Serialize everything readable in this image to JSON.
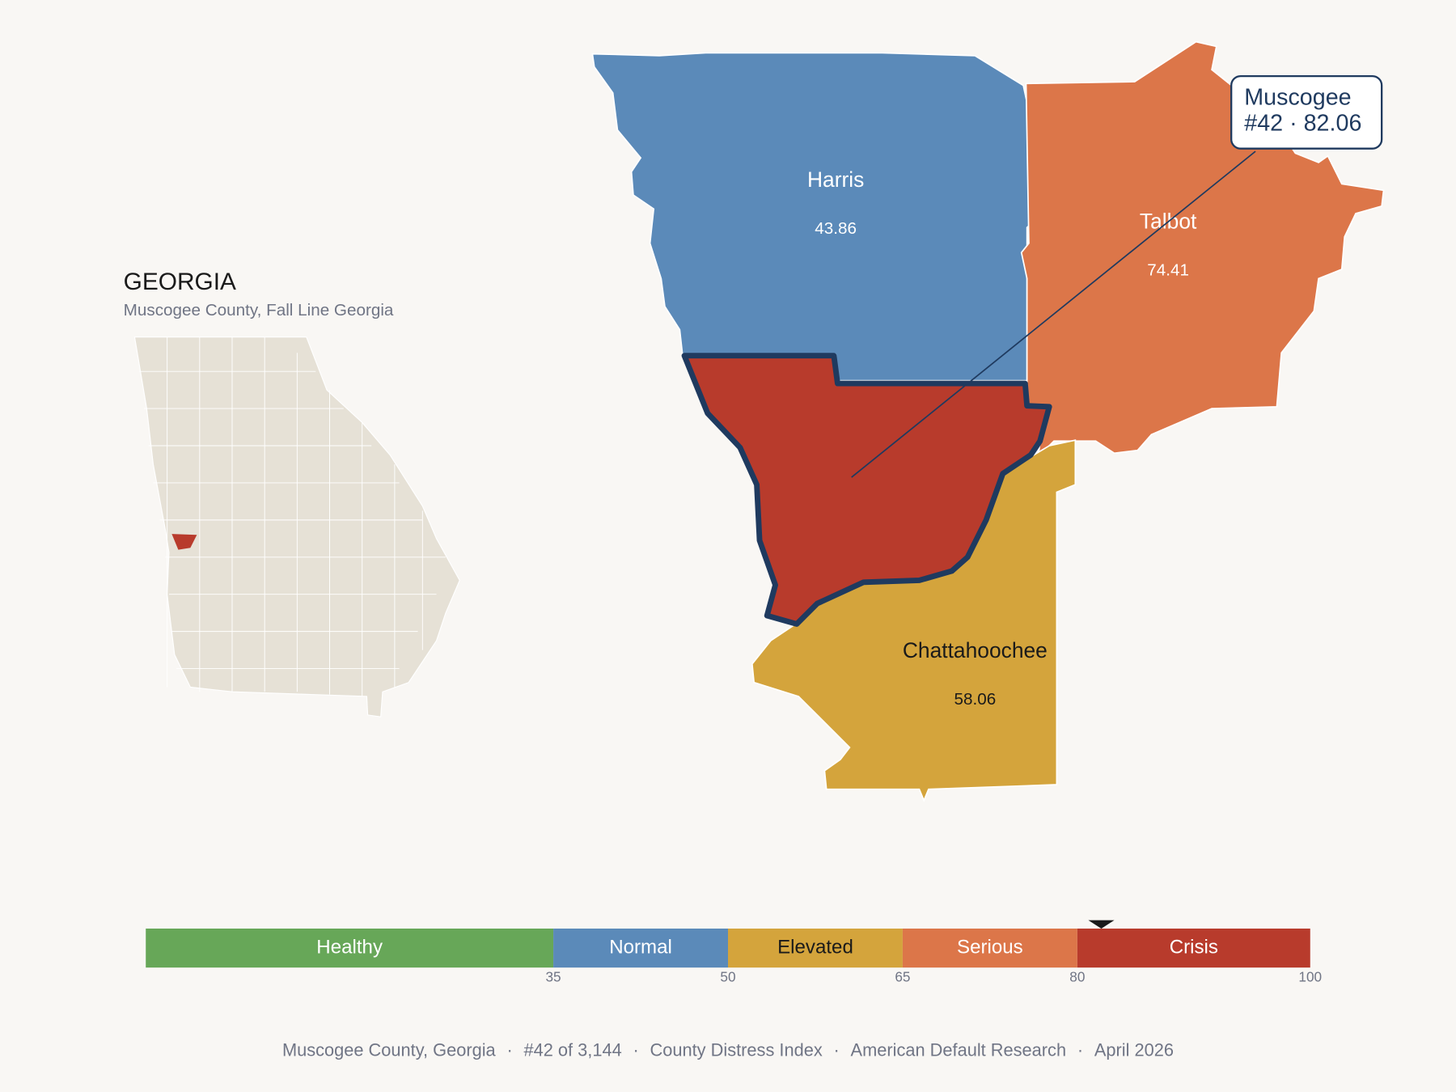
{
  "header": {
    "title": "GEORGIA",
    "subtitle": "Muscogee County, Fall Line Georgia"
  },
  "counties": [
    {
      "name": "Harris",
      "value": 43.86
    },
    {
      "name": "Talbot",
      "value": 74.41
    },
    {
      "name": "Chattahoochee",
      "value": 58.06
    }
  ],
  "focus": {
    "name": "Muscogee",
    "label": "#42 · 82.06",
    "value": 82.06
  },
  "scale": {
    "min": 0,
    "max": 100,
    "bands": [
      {
        "name": "Healthy",
        "color": "#67a758"
      },
      {
        "name": "Normal",
        "color": "#5b8ab9"
      },
      {
        "name": "Elevated",
        "color": "#d4a43c"
      },
      {
        "name": "Serious",
        "color": "#dc7649"
      },
      {
        "name": "Crisis",
        "color": "#b83b2c"
      }
    ],
    "ticks": [
      35,
      50,
      65,
      80,
      100
    ]
  },
  "footer": {
    "items": [
      "Muscogee County, Georgia",
      "#42 of 3,144",
      "County Distress Index",
      "American Default Research",
      "April 2026"
    ],
    "separator": "·"
  }
}
